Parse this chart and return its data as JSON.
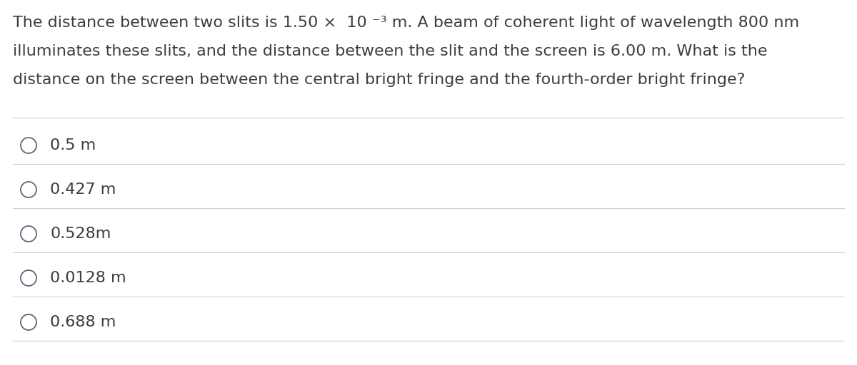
{
  "background_color": "#ffffff",
  "text_color": "#3d3d3d",
  "question_line1": "The distance between two slits is 1.50 ×  10 ⁻³ m. A beam of coherent light of wavelength 800 nm",
  "question_line2": "illuminates these slits, and the distance between the slit and the screen is 6.00 m. What is the",
  "question_line3": "distance on the screen between the central bright fringe and the fourth-order bright fringe?",
  "options": [
    "0.5 m",
    "0.427 m",
    "0.528m",
    "0.0128 m",
    "0.688 m"
  ],
  "line_color": "#d0d0d0",
  "circle_edge_color": "#5a6a7a",
  "font_size_question": 16,
  "font_size_options": 16,
  "figsize": [
    12.0,
    5.12
  ],
  "dpi": 100
}
